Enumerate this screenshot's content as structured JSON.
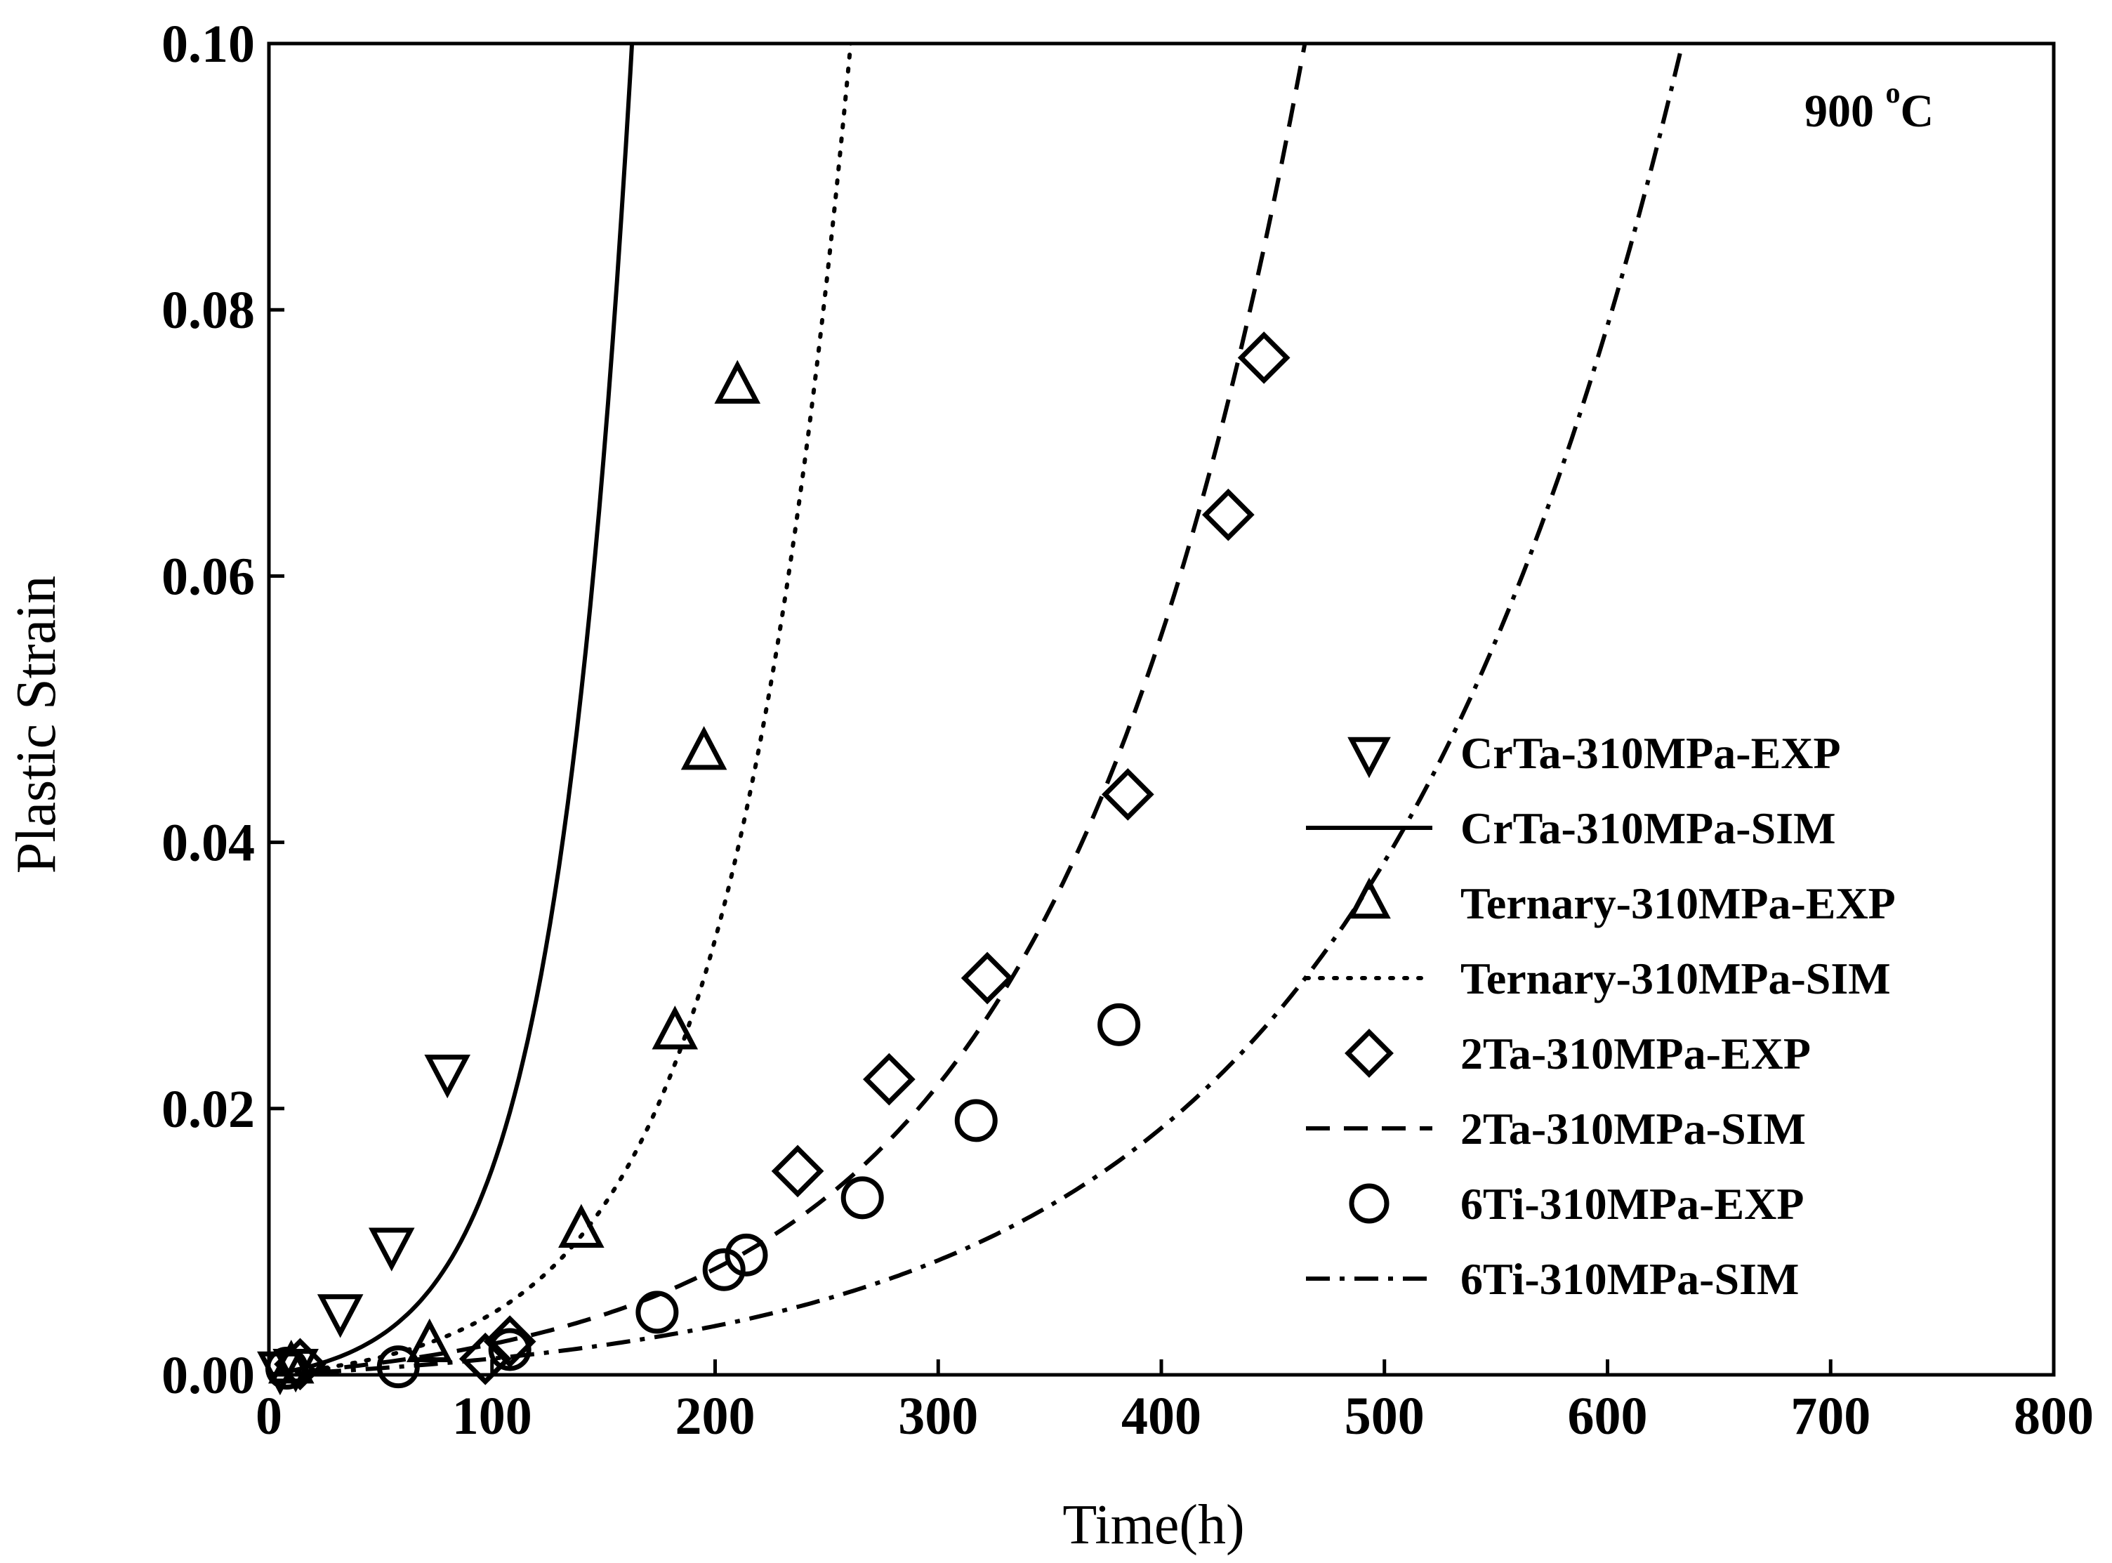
{
  "chart_data": {
    "type": "scatter",
    "title": "",
    "xlabel": "Time(h)",
    "ylabel": "Plastic Strain",
    "xlim": [
      0,
      800
    ],
    "ylim": [
      0,
      0.1
    ],
    "xticks": [
      "0",
      "100",
      "200",
      "300",
      "400",
      "500",
      "600",
      "700",
      "800"
    ],
    "yticks": [
      "0.00",
      "0.02",
      "0.04",
      "0.06",
      "0.08",
      "0.10"
    ],
    "grid": false,
    "legend_position": "right",
    "annotation": {
      "text": "900 ",
      "superscript": "o",
      "unit": "C"
    },
    "series": [
      {
        "name": "CrTa-310MPa-EXP",
        "kind": "scatter",
        "marker": "triangle-down",
        "points": [
          [
            5,
            0.0005
          ],
          [
            12,
            0.0007
          ],
          [
            32,
            0.0048
          ],
          [
            55,
            0.0098
          ],
          [
            80,
            0.0228
          ]
        ]
      },
      {
        "name": "CrTa-310MPa-SIM",
        "kind": "line",
        "dash": "solid",
        "curve": {
          "a": 0.0009,
          "k": 0.029
        }
      },
      {
        "name": "Ternary-310MPa-EXP",
        "kind": "scatter",
        "marker": "triangle-up",
        "points": [
          [
            10,
            0.0006
          ],
          [
            72,
            0.0022
          ],
          [
            140,
            0.0108
          ],
          [
            182,
            0.0257
          ],
          [
            195,
            0.0467
          ],
          [
            210,
            0.0742
          ]
        ]
      },
      {
        "name": "Ternary-310MPa-SIM",
        "kind": "line",
        "dash": "dotted",
        "curve": {
          "a": 0.0009,
          "k": 0.0181
        }
      },
      {
        "name": "2Ta-310MPa-EXP",
        "kind": "scatter",
        "marker": "diamond",
        "points": [
          [
            14,
            0.0008
          ],
          [
            97,
            0.0012
          ],
          [
            108,
            0.0025
          ],
          [
            237,
            0.0153
          ],
          [
            278,
            0.0222
          ],
          [
            322,
            0.0298
          ],
          [
            385,
            0.0436
          ],
          [
            430,
            0.0646
          ],
          [
            446,
            0.0764
          ]
        ]
      },
      {
        "name": "2Ta-310MPa-SIM",
        "kind": "line",
        "dash": "dashed",
        "curve": {
          "a": 0.0016,
          "k": 0.00894
        }
      },
      {
        "name": "6Ti-310MPa-EXP",
        "kind": "scatter",
        "marker": "circle",
        "points": [
          [
            8,
            0.0005
          ],
          [
            58,
            0.0006
          ],
          [
            108,
            0.0019
          ],
          [
            174,
            0.0047
          ],
          [
            204,
            0.0079
          ],
          [
            214,
            0.009
          ],
          [
            266,
            0.0133
          ],
          [
            317,
            0.0191
          ],
          [
            381,
            0.0263
          ]
        ]
      },
      {
        "name": "6Ti-310MPa-SIM",
        "kind": "line",
        "dash": "dash-dot",
        "curve": {
          "a": 0.0012,
          "k": 0.007
        }
      }
    ]
  }
}
